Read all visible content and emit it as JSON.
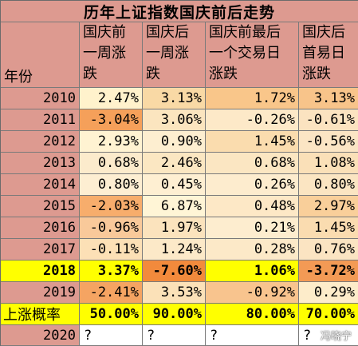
{
  "title": "历年上证指数国庆前后走势",
  "headers": {
    "year": "年份",
    "col1": "国庆前\n一周涨\n跌",
    "col2": "国庆后\n一周涨\n跌",
    "col3": "国庆前最后\n一个交易日\n涨跌",
    "col4": "国庆后\n首易日\n涨跌"
  },
  "rows": [
    {
      "year": "2010",
      "v": [
        "2.47%",
        "3.13%",
        "1.72%",
        "3.13%"
      ]
    },
    {
      "year": "2011",
      "v": [
        "-3.04%",
        "3.06%",
        "-0.26%",
        "-0.61%"
      ]
    },
    {
      "year": "2012",
      "v": [
        "2.93%",
        "0.90%",
        "1.45%",
        "-0.56%"
      ]
    },
    {
      "year": "2013",
      "v": [
        "0.68%",
        "2.46%",
        "0.68%",
        "1.08%"
      ]
    },
    {
      "year": "2014",
      "v": [
        "0.80%",
        "0.45%",
        "0.26%",
        "0.80%"
      ]
    },
    {
      "year": "2015",
      "v": [
        "-2.03%",
        "6.87%",
        "0.48%",
        "2.97%"
      ]
    },
    {
      "year": "2016",
      "v": [
        "-0.96%",
        "1.97%",
        "0.21%",
        "1.45%"
      ]
    },
    {
      "year": "2017",
      "v": [
        "-0.11%",
        "1.24%",
        "0.28%",
        "0.76%"
      ]
    },
    {
      "year": "2018",
      "v": [
        "3.37%",
        "-7.60%",
        "1.06%",
        "-3.72%"
      ]
    },
    {
      "year": "2019",
      "v": [
        "-2.41%",
        "3.53%",
        "-0.92%",
        "0.29%"
      ]
    }
  ],
  "rate_row": {
    "label": "上涨概率",
    "v": [
      "50.00%",
      "90.00%",
      "80.00%",
      "70.00%"
    ]
  },
  "row_2020": {
    "year": "2020",
    "v": [
      "?",
      "?",
      "?",
      "?"
    ]
  },
  "watermark": "冯晓宁",
  "colors": {
    "header_bg": "#dd9a90",
    "highlight_yellow": "#ffff00",
    "border": "#7a7a7a"
  }
}
